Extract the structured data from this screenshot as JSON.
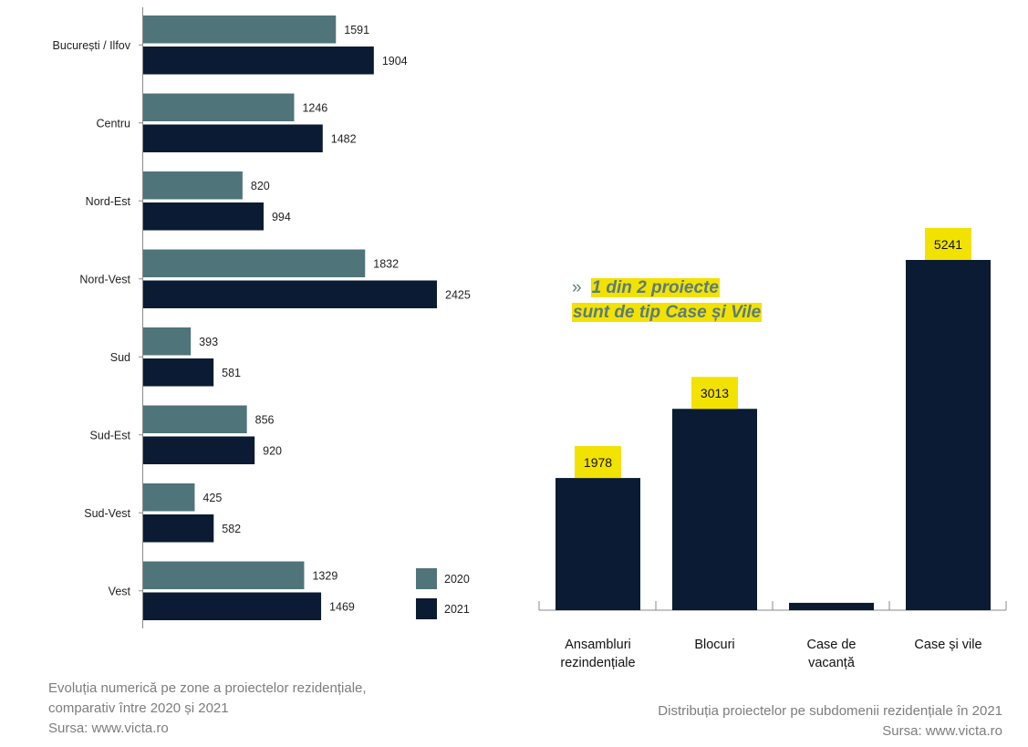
{
  "chart_data": [
    {
      "type": "bar",
      "orientation": "horizontal",
      "categories": [
        "București / Ilfov",
        "Centru",
        "Nord-Est",
        "Nord-Vest",
        "Sud",
        "Sud-Est",
        "Sud-Vest",
        "Vest"
      ],
      "series": [
        {
          "name": "2020",
          "values": [
            1591,
            1246,
            820,
            1832,
            393,
            856,
            425,
            1329
          ],
          "color": "#4f7479"
        },
        {
          "name": "2021",
          "values": [
            1904,
            1482,
            994,
            2425,
            581,
            920,
            582,
            1469
          ],
          "color": "#0a1b33"
        }
      ],
      "xlim": [
        0,
        2425
      ],
      "legend_position": "bottom-right",
      "grid": false
    },
    {
      "type": "bar",
      "orientation": "vertical",
      "categories": [
        "Ansambluri rezindențiale",
        "Blocuri",
        "Case de vacanță",
        "Case și vile"
      ],
      "values": [
        1978,
        3013,
        110,
        5241
      ],
      "data_labels": [
        "1978",
        "3013",
        "",
        "5241"
      ],
      "ylim": [
        0,
        5241
      ],
      "color": "#0a1b33",
      "label_bg": "#f2e200",
      "grid": false
    }
  ],
  "callout": {
    "marker": "»",
    "line1": "1 din 2 proiecte",
    "line2": "sunt de tip Case și Vile"
  },
  "left_caption": {
    "line1": "Evoluția numerică pe zone a proiectelor rezidențiale,",
    "line2": "comparativ între 2020 și 2021",
    "line3": "Sursa: www.victa.ro"
  },
  "right_caption": {
    "line1": "Distribuția proiectelor pe subdomenii rezidențiale în 2021",
    "line2": "Sursa: www.victa.ro"
  }
}
